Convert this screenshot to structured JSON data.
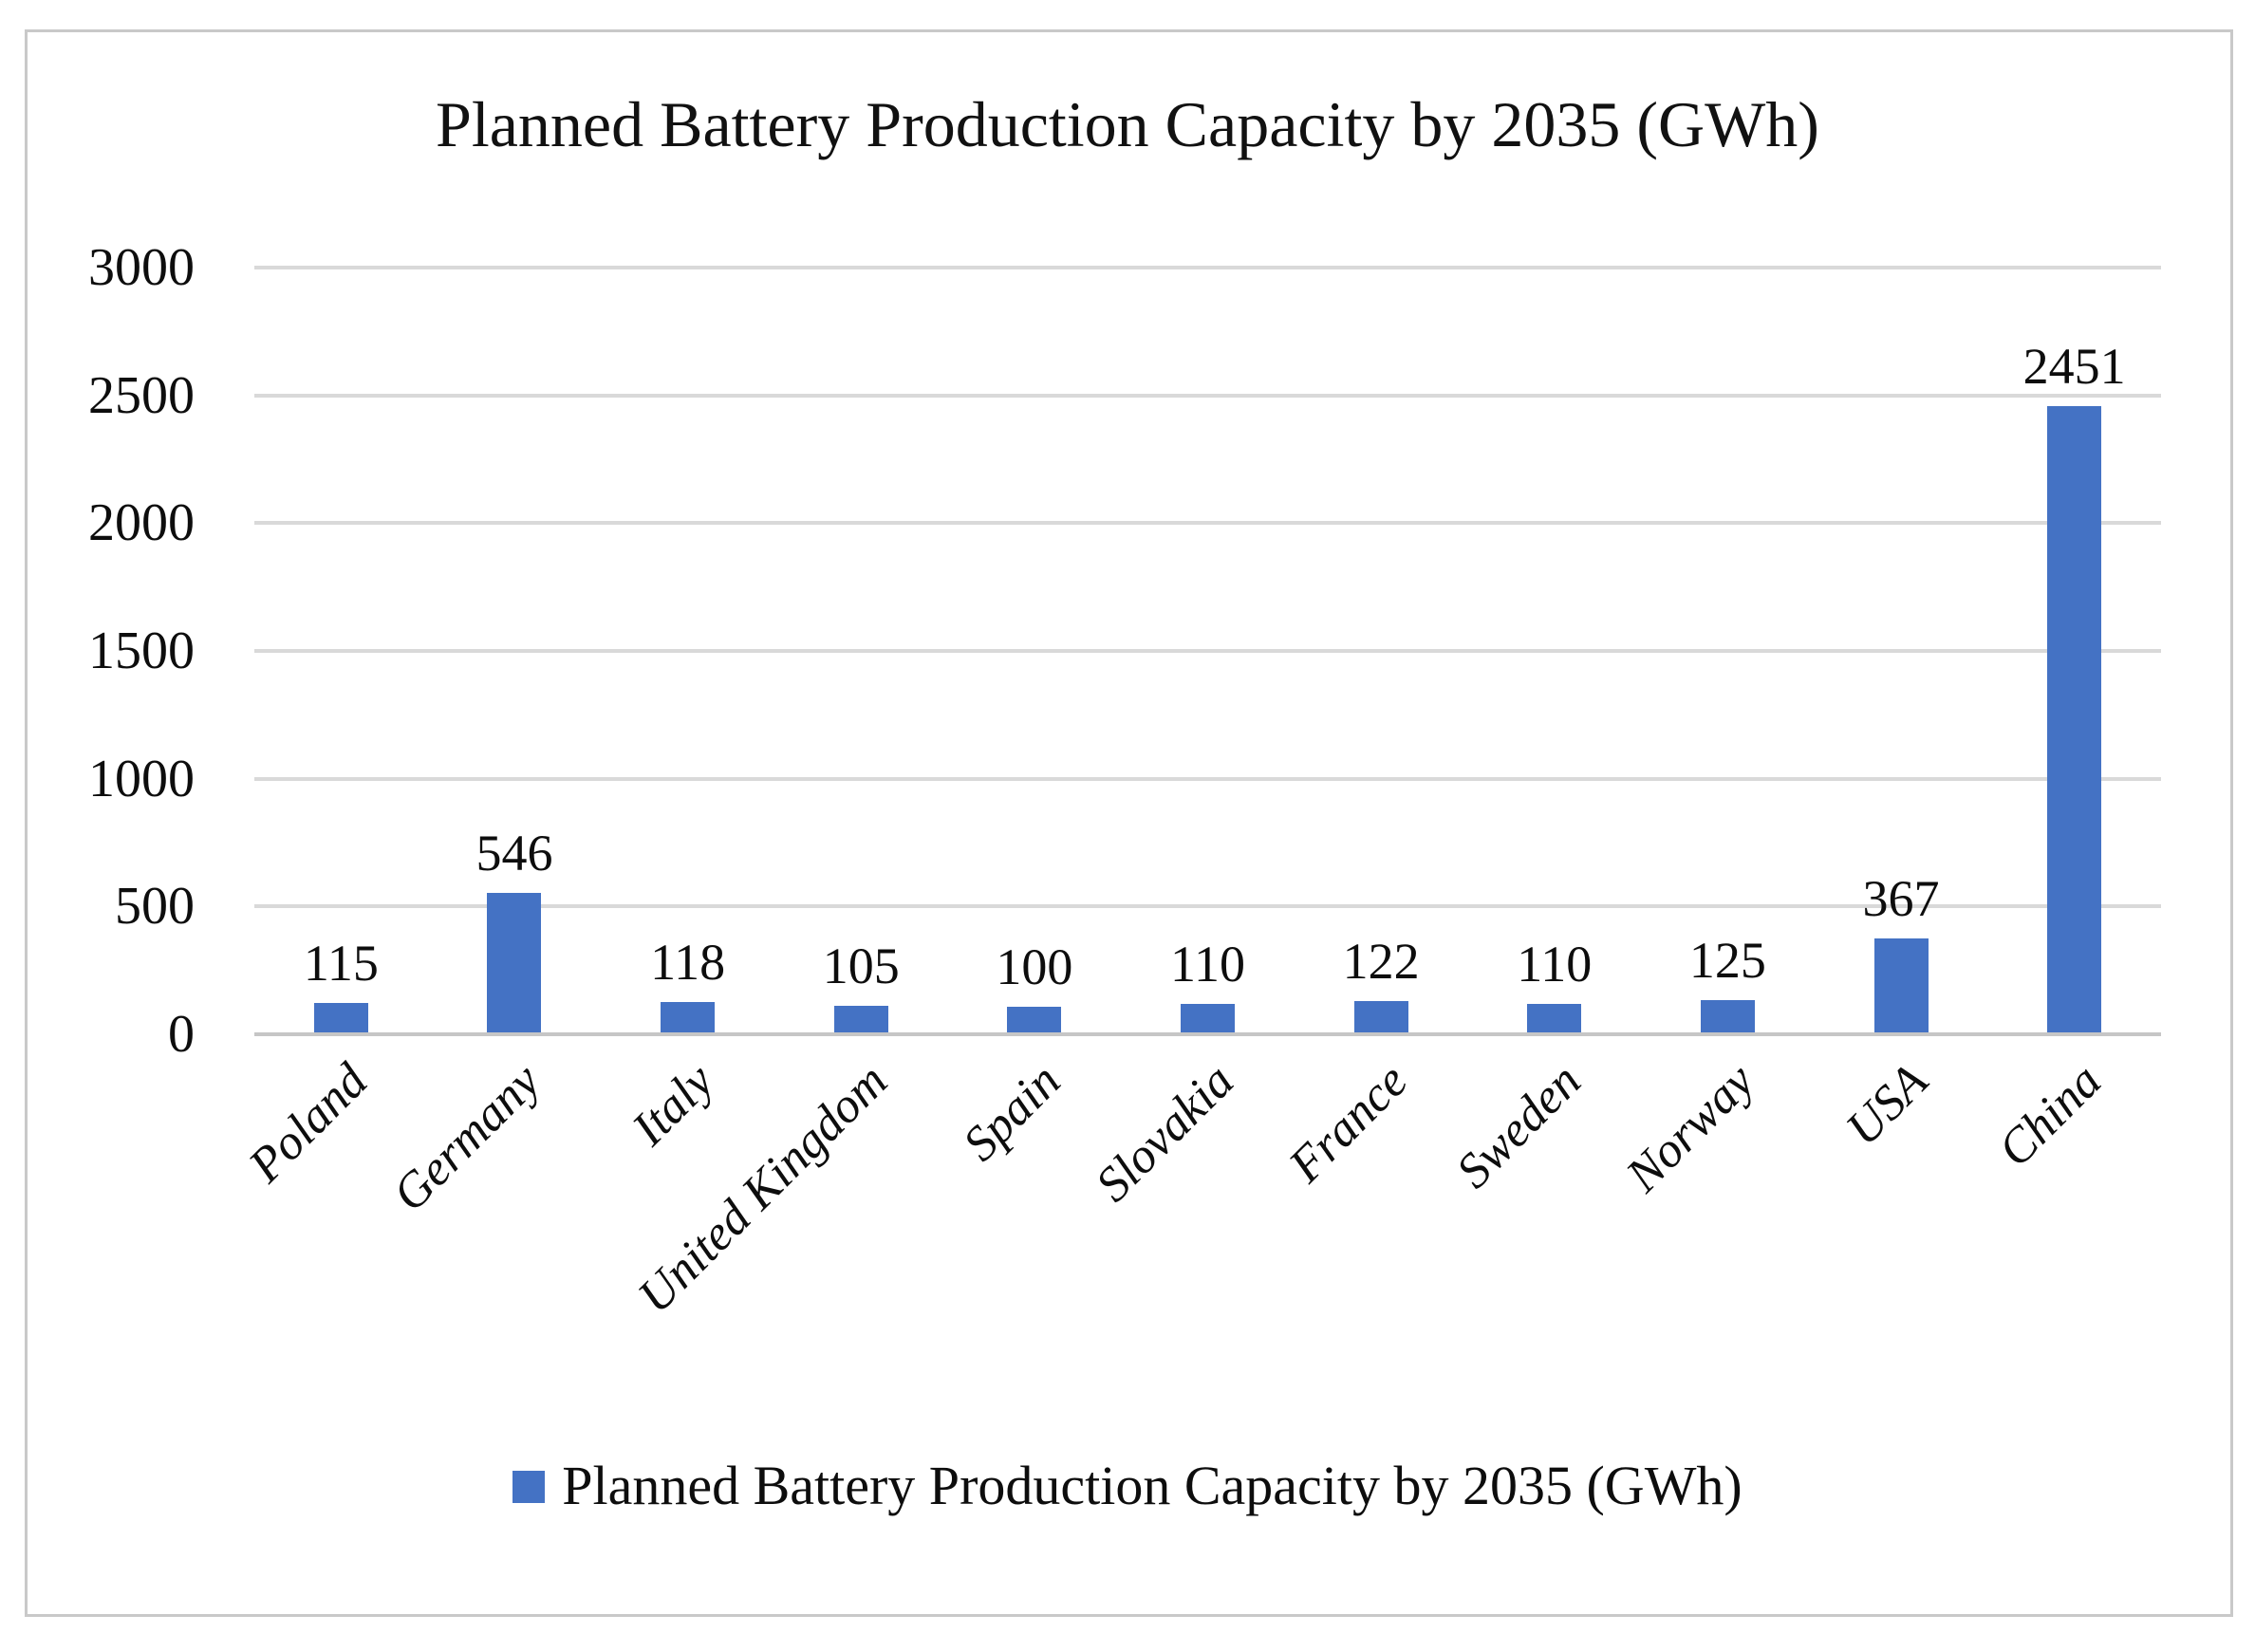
{
  "chart_data": {
    "type": "bar",
    "title": "Planned Battery Production Capacity by 2035 (GWh)",
    "categories": [
      "Poland",
      "Germany",
      "Italy",
      "United Kingdom",
      "Spain",
      "Slovakia",
      "France",
      "Sweden",
      "Norway",
      "USA",
      "China"
    ],
    "values": [
      115,
      546,
      118,
      105,
      100,
      110,
      122,
      110,
      125,
      367,
      2451
    ],
    "series_name": "Planned Battery Production Capacity by 2035 (GWh)",
    "xlabel": "",
    "ylabel": "",
    "ylim": [
      0,
      3000
    ],
    "yticks": [
      0,
      500,
      1000,
      1500,
      2000,
      2500,
      3000
    ],
    "grid": true,
    "data_labels": "outside-end",
    "legend_position": "bottom",
    "bar_color": "#4472C4",
    "gridline_color": "#D9D9D9",
    "axis_line_color": "#C6C6C6",
    "text_color": "#0D0D0D",
    "border_color": "#C9C9C9"
  }
}
